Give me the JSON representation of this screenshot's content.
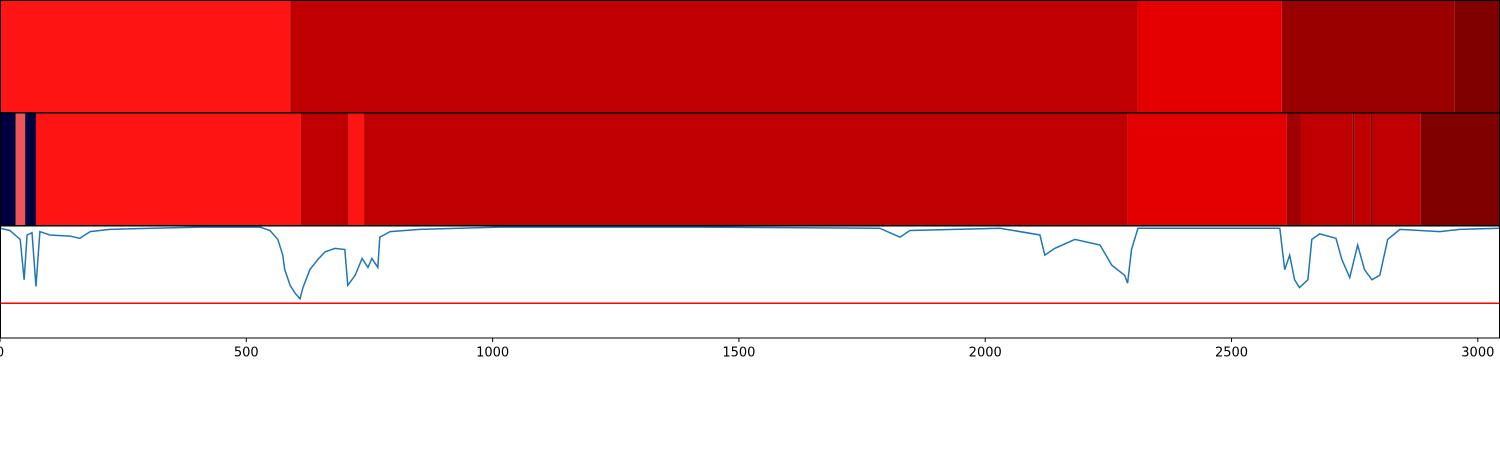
{
  "chart_data": [
    {
      "type": "segments",
      "xlim": [
        0,
        3045
      ],
      "edges": [
        0,
        589,
        2310,
        2602,
        2953,
        3045
      ],
      "colors": [
        "#ff1414",
        "#c00000",
        "#e50000",
        "#9b0000",
        "#800000"
      ]
    },
    {
      "type": "segments",
      "xlim": [
        0,
        3045
      ],
      "edges": [
        0,
        32,
        51,
        73,
        611,
        708,
        739,
        2289,
        2612,
        2641,
        2746,
        2750,
        2783,
        2787,
        2884,
        3045
      ],
      "colors": [
        "#000040",
        "#f05454",
        "#000040",
        "#ff1414",
        "#c00000",
        "#ff1414",
        "#c00000",
        "#e50000",
        "#a00000",
        "#c00000",
        "#800000",
        "#c00000",
        "#800000",
        "#c00000",
        "#800000"
      ]
    },
    {
      "type": "line",
      "xlim": [
        0,
        3045
      ],
      "ylim": [
        0,
        1
      ],
      "xticks": [
        0,
        500,
        1000,
        1500,
        2000,
        2500,
        3000
      ],
      "color": "#1f77b4",
      "hline": 0.31,
      "hline_color": "#ff0000",
      "x": [
        0,
        20,
        41,
        49,
        55,
        65,
        73,
        81,
        101,
        142,
        162,
        183,
        223,
        406,
        528,
        548,
        564,
        574,
        578,
        589,
        599,
        609,
        615,
        629,
        645,
        660,
        680,
        700,
        706,
        721,
        735,
        747,
        755,
        767,
        771,
        792,
        852,
        1015,
        1421,
        1786,
        1827,
        1847,
        2030,
        2111,
        2121,
        2141,
        2182,
        2233,
        2257,
        2283,
        2289,
        2297,
        2310,
        2598,
        2608,
        2618,
        2628,
        2638,
        2655,
        2663,
        2679,
        2712,
        2724,
        2740,
        2756,
        2770,
        2785,
        2801,
        2817,
        2842,
        2923,
        2963,
        3045
      ],
      "values": [
        0.98,
        0.96,
        0.88,
        0.52,
        0.92,
        0.94,
        0.46,
        0.95,
        0.92,
        0.91,
        0.89,
        0.95,
        0.97,
        0.99,
        0.99,
        0.96,
        0.88,
        0.74,
        0.61,
        0.47,
        0.4,
        0.35,
        0.45,
        0.61,
        0.7,
        0.77,
        0.8,
        0.79,
        0.47,
        0.56,
        0.71,
        0.63,
        0.71,
        0.63,
        0.9,
        0.95,
        0.97,
        0.99,
        0.99,
        0.98,
        0.9,
        0.96,
        0.98,
        0.92,
        0.74,
        0.8,
        0.88,
        0.83,
        0.65,
        0.56,
        0.49,
        0.79,
        0.98,
        0.98,
        0.61,
        0.74,
        0.52,
        0.45,
        0.52,
        0.88,
        0.93,
        0.89,
        0.7,
        0.54,
        0.83,
        0.61,
        0.52,
        0.56,
        0.88,
        0.97,
        0.95,
        0.97,
        0.98
      ]
    }
  ]
}
